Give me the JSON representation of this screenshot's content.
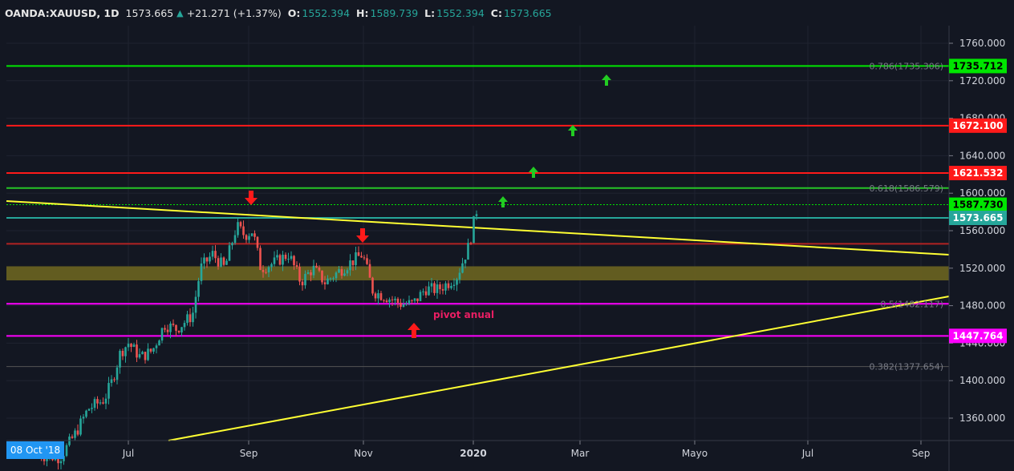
{
  "header": {
    "symbol": "OANDA:XAUUSD, 1D",
    "last": "1573.665",
    "change": "+21.271 (+1.37%)",
    "o_label": "O:",
    "o_value": "1552.394",
    "h_label": "H:",
    "h_value": "1589.739",
    "l_label": "L:",
    "l_value": "1552.394",
    "c_label": "C:",
    "c_value": "1573.665"
  },
  "date_tag": "08 Oct '18",
  "chart_data": {
    "type": "candlestick",
    "symbol": "OANDA:XAUUSD",
    "timeframe": "1D",
    "ylim": [
      1330,
      1775
    ],
    "y_ticks": [
      1760,
      1720,
      1680,
      1640,
      1600,
      1560,
      1520,
      1480,
      1440,
      1400,
      1360
    ],
    "y_tick_labels": [
      "1760.000",
      "1720.000",
      "1680.000",
      "1640.000",
      "1600.000",
      "1560.000",
      "1520.000",
      "1480.000",
      "1440.000",
      "1400.000",
      "1360.000"
    ],
    "x_tick_labels": [
      "Jul",
      "Sep",
      "Nov",
      "2020",
      "Mar",
      "Mayo",
      "Jul",
      "Sep"
    ],
    "price_series": [
      [
        0,
        1338
      ],
      [
        30,
        1330
      ],
      [
        55,
        1320
      ],
      [
        75,
        1318
      ],
      [
        95,
        1345
      ],
      [
        110,
        1370
      ],
      [
        130,
        1380
      ],
      [
        140,
        1400
      ],
      [
        150,
        1430
      ],
      [
        160,
        1440
      ],
      [
        175,
        1425
      ],
      [
        190,
        1432
      ],
      [
        205,
        1460
      ],
      [
        220,
        1455
      ],
      [
        240,
        1470
      ],
      [
        250,
        1520
      ],
      [
        265,
        1535
      ],
      [
        280,
        1520
      ],
      [
        295,
        1565
      ],
      [
        305,
        1555
      ],
      [
        315,
        1560
      ],
      [
        325,
        1520
      ],
      [
        340,
        1525
      ],
      [
        360,
        1535
      ],
      [
        375,
        1505
      ],
      [
        390,
        1520
      ],
      [
        405,
        1505
      ],
      [
        420,
        1515
      ],
      [
        435,
        1525
      ],
      [
        452,
        1535
      ],
      [
        465,
        1495
      ],
      [
        480,
        1490
      ],
      [
        500,
        1482
      ],
      [
        515,
        1482
      ],
      [
        530,
        1498
      ],
      [
        545,
        1497
      ],
      [
        560,
        1505
      ],
      [
        570,
        1512
      ],
      [
        578,
        1530
      ],
      [
        585,
        1545
      ],
      [
        592,
        1575
      ],
      [
        596,
        1588
      ]
    ],
    "levels": [
      {
        "price": 1735.712,
        "color": "#00e600",
        "tag": "1735.712",
        "fib": "0.786(1735.306)"
      },
      {
        "price": 1672.1,
        "color": "#ff1a1a",
        "tag": "1672.100"
      },
      {
        "price": 1621.532,
        "color": "#ff1a1a",
        "tag": "1621.532"
      },
      {
        "price": 1605.5,
        "color": "#26c426",
        "fib": "0.618(1586.579)"
      },
      {
        "price": 1587.73,
        "color": "#00e600",
        "tag": "1587.730",
        "style": "dotted"
      },
      {
        "price": 1573.665,
        "color": "#26a69a",
        "tag": "1573.665"
      },
      {
        "price": 1546,
        "color": "#b22222"
      },
      {
        "price": 1482,
        "color": "#ff00ff",
        "fib": "0.5(1482.117)"
      },
      {
        "price": 1447.764,
        "color": "#ff00ff",
        "tag": "1447.764"
      },
      {
        "price": 1415,
        "color": "#555555",
        "fib": "0.382(1377.654)"
      }
    ],
    "zone": {
      "from": 1507,
      "to": 1522,
      "color": "#6b6420"
    },
    "annotations": [
      "pivot anual"
    ]
  }
}
